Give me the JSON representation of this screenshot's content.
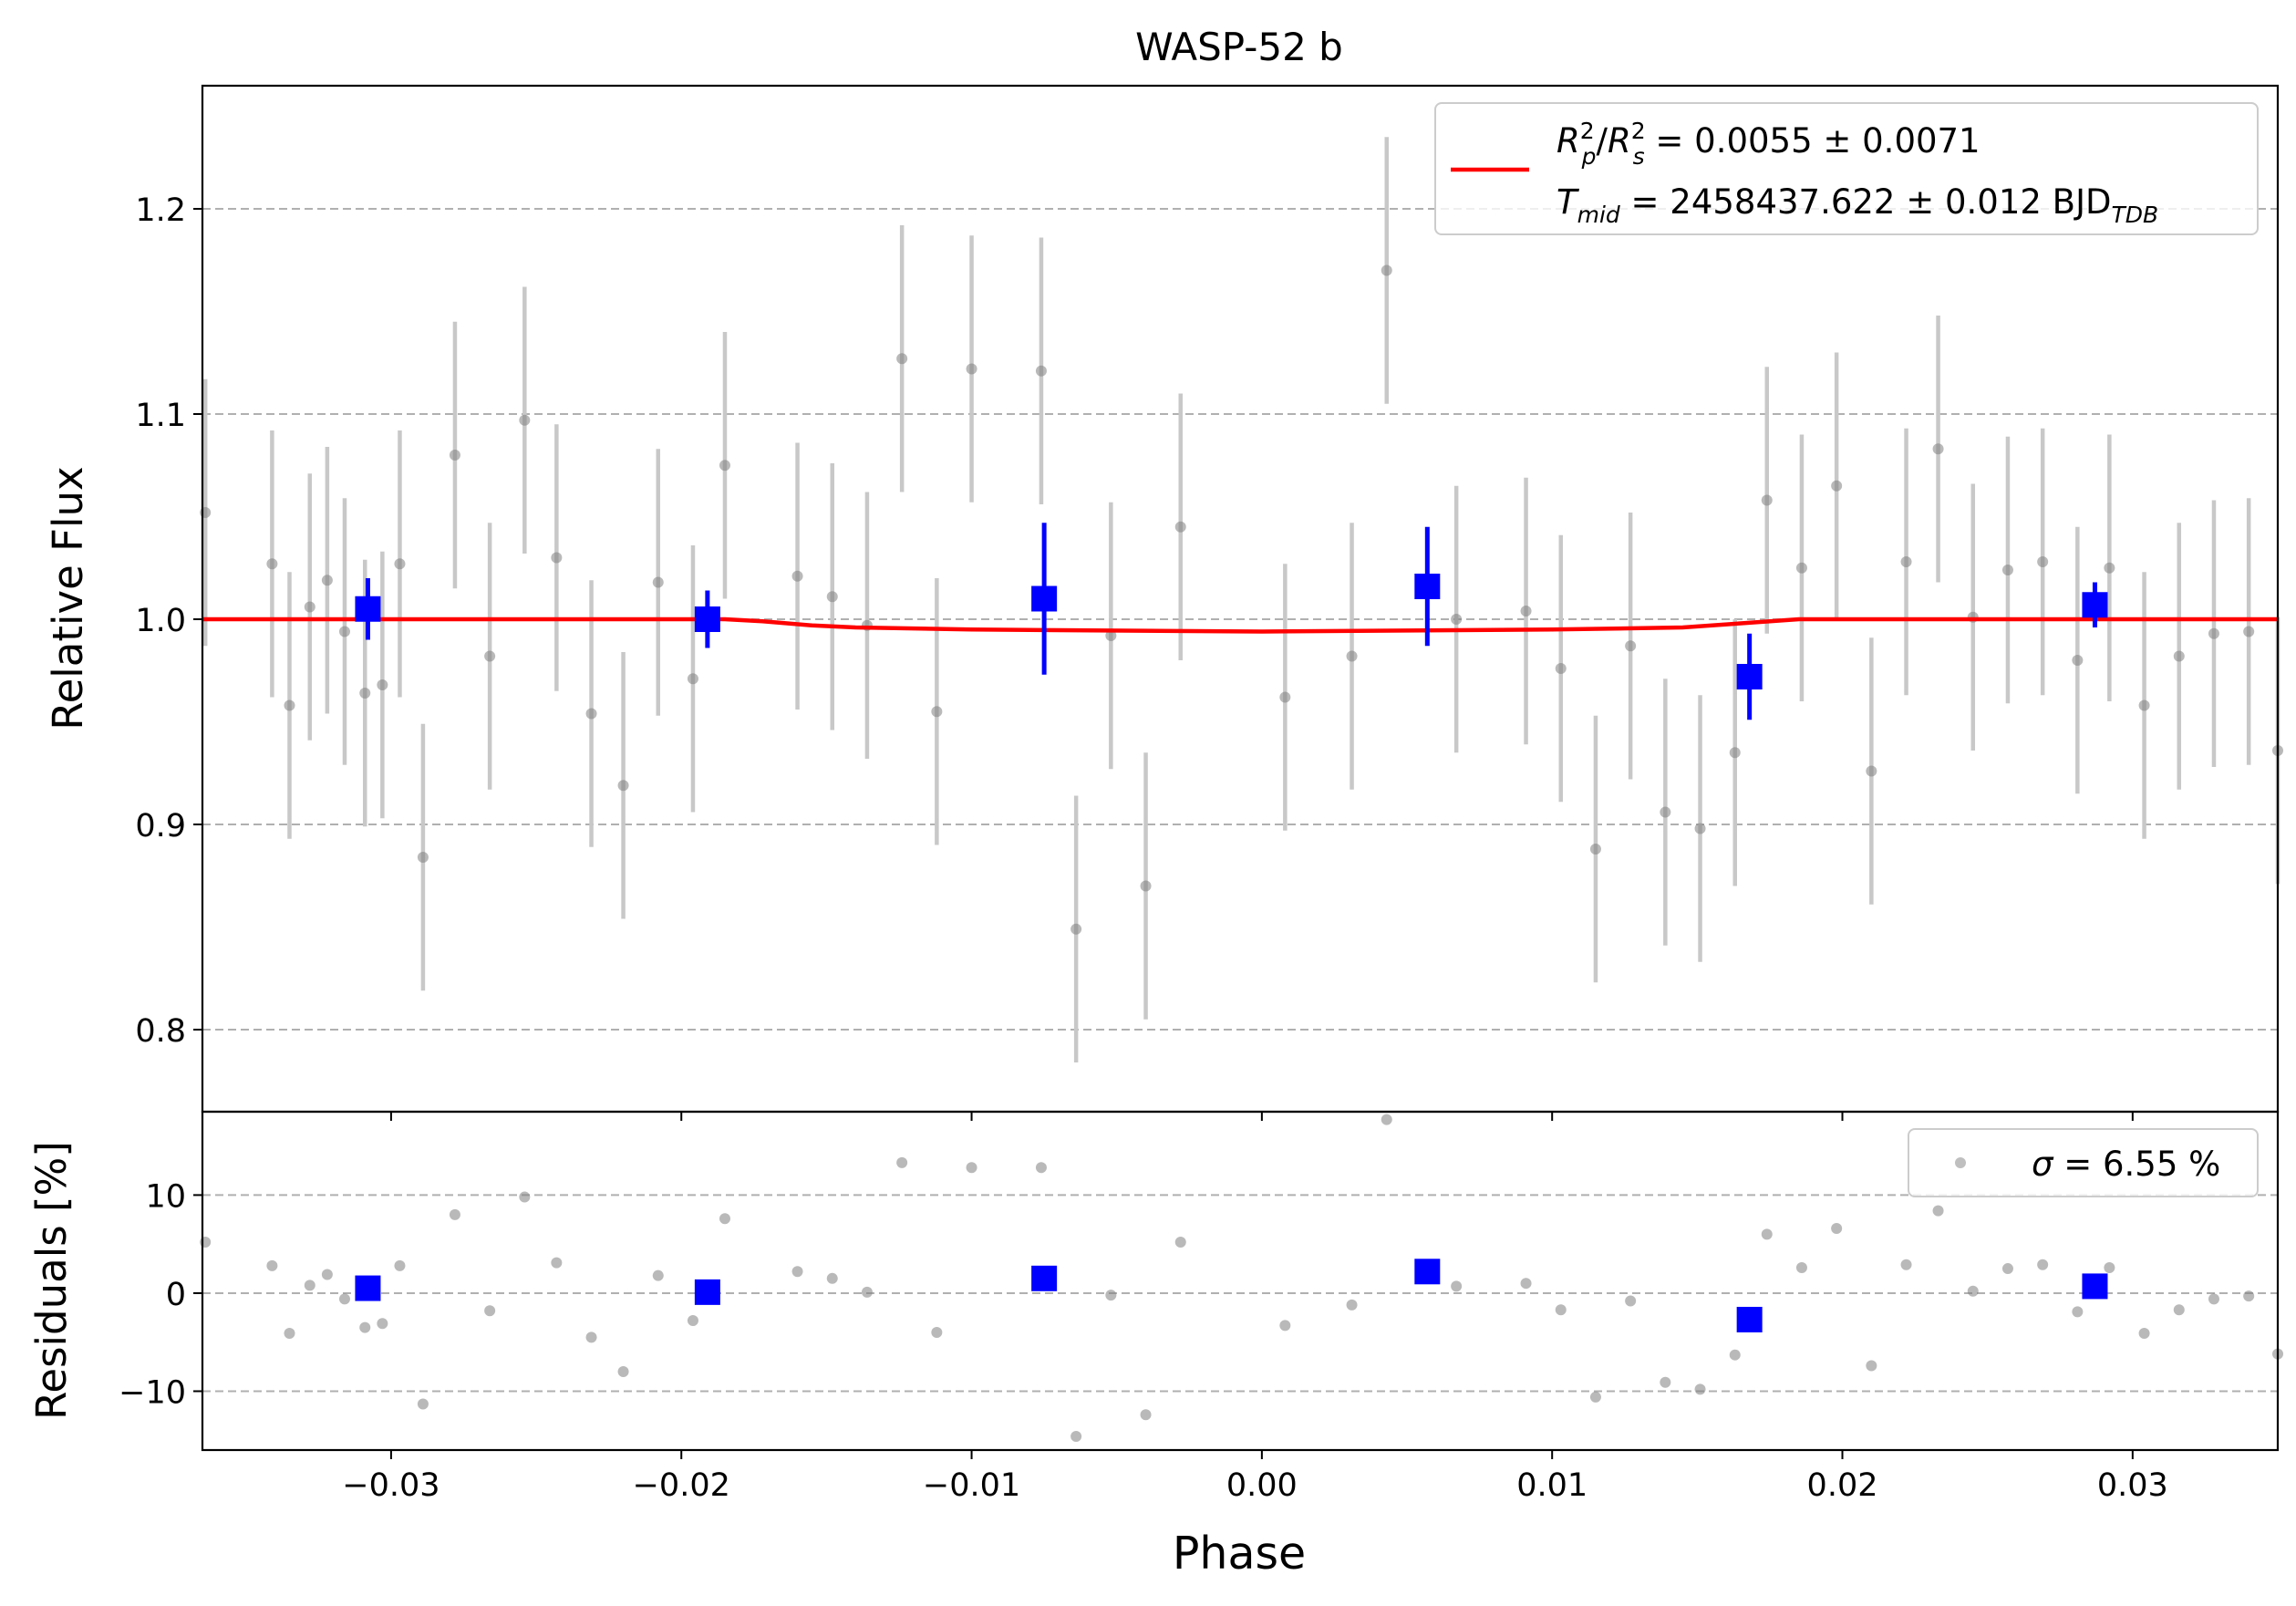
{
  "chart_data": [
    {
      "type": "scatter",
      "panel": "lightcurve",
      "title": "WASP-52 b",
      "xlabel": "",
      "ylabel": "Relative Flux",
      "xlim": [
        -0.0365,
        0.035
      ],
      "ylim": [
        0.76,
        1.26
      ],
      "yticks": [
        0.8,
        0.9,
        1.0,
        1.1,
        1.2
      ],
      "ytick_labels": [
        "0.8",
        "0.9",
        "1.0",
        "1.1",
        "1.2"
      ],
      "grid": "y-dashed",
      "legend_position": "upper right",
      "legend": {
        "line1": {
          "R": "R",
          "sub_p": "p",
          "sup_a": "2",
          "slash": "/",
          "sub_s": "s",
          "sup_b": "2",
          "value": " = 0.0055 ± 0.0071"
        },
        "line2": {
          "T": "T",
          "sub": "mid",
          "value": " = 2458437.622 ± 0.012 BJD",
          "unit_sub": "TDB"
        }
      },
      "colors": {
        "data": "#808080",
        "errorbar": "#c8c8c8",
        "binned": "#0000ff",
        "model": "#ff0000",
        "grid": "#b0b0b0"
      },
      "series": [
        {
          "role": "data",
          "x": [
            -0.0364,
            -0.0341,
            -0.0335,
            -0.0328,
            -0.0322,
            -0.0316,
            -0.0309,
            -0.0303,
            -0.0297,
            -0.0289,
            -0.0278,
            -0.0266,
            -0.0254,
            -0.0243,
            -0.0231,
            -0.022,
            -0.0208,
            -0.0196,
            -0.0185,
            -0.016,
            -0.0148,
            -0.0136,
            -0.0124,
            -0.0112,
            -0.01,
            -0.0076,
            -0.0064,
            -0.0052,
            -0.004,
            -0.0028,
            0.0008,
            0.0031,
            0.0043,
            0.0067,
            0.0091,
            0.0103,
            0.0115,
            0.0127,
            0.0139,
            0.0151,
            0.0163,
            0.0174,
            0.0186,
            0.0198,
            0.021,
            0.0222,
            0.0233,
            0.0245,
            0.0257,
            0.0269,
            0.0281,
            0.0292,
            0.0304,
            0.0316,
            0.0328,
            0.034,
            0.035
          ],
          "y": [
            1.052,
            1.027,
            0.958,
            1.006,
            1.019,
            0.994,
            0.964,
            0.968,
            1.027,
            0.884,
            1.08,
            0.982,
            1.097,
            1.03,
            0.954,
            0.919,
            1.018,
            0.971,
            1.075,
            1.021,
            1.011,
            0.997,
            1.127,
            0.955,
            1.122,
            1.121,
            0.849,
            0.992,
            0.87,
            1.045,
            0.962,
            0.982,
            1.17,
            1.0,
            1.004,
            0.976,
            0.888,
            0.987,
            0.906,
            0.898,
            0.935,
            1.058,
            1.025,
            1.065,
            0.926,
            1.028,
            1.083,
            1.001,
            1.024,
            1.028,
            0.98,
            1.025,
            0.958,
            0.982,
            0.993,
            0.994,
            0.936
          ],
          "yerr": [
            0.065,
            0.065,
            0.065,
            0.065,
            0.065,
            0.065,
            0.065,
            0.065,
            0.065,
            0.065,
            0.065,
            0.065,
            0.065,
            0.065,
            0.065,
            0.065,
            0.065,
            0.065,
            0.065,
            0.065,
            0.065,
            0.065,
            0.065,
            0.065,
            0.065,
            0.065,
            0.065,
            0.065,
            0.065,
            0.065,
            0.065,
            0.065,
            0.065,
            0.065,
            0.065,
            0.065,
            0.065,
            0.065,
            0.065,
            0.065,
            0.065,
            0.065,
            0.065,
            0.065,
            0.065,
            0.065,
            0.065,
            0.065,
            0.065,
            0.065,
            0.065,
            0.065,
            0.065,
            0.065,
            0.065,
            0.065,
            0.065
          ]
        },
        {
          "role": "binned",
          "x": [
            -0.0308,
            -0.0191,
            -0.0075,
            0.0057,
            0.0168,
            0.0287
          ],
          "y": [
            1.005,
            1.0,
            1.01,
            1.016,
            0.972,
            1.007
          ],
          "yerr": [
            0.015,
            0.014,
            0.037,
            0.029,
            0.021,
            0.011
          ]
        },
        {
          "role": "model",
          "x": [
            -0.0365,
            -0.0185,
            -0.0172,
            -0.0155,
            -0.014,
            -0.01,
            0.0,
            0.01,
            0.0145,
            0.0165,
            0.0185,
            0.035
          ],
          "y": [
            1.0,
            1.0,
            0.999,
            0.997,
            0.996,
            0.995,
            0.994,
            0.995,
            0.996,
            0.998,
            1.0,
            1.0
          ]
        }
      ]
    },
    {
      "type": "scatter",
      "panel": "residuals",
      "xlabel": "Phase",
      "ylabel": "Residuals [%]",
      "xlim": [
        -0.0365,
        0.035
      ],
      "ylim": [
        -16,
        18.5
      ],
      "xticks": [
        -0.03,
        -0.02,
        -0.01,
        0.0,
        0.01,
        0.02,
        0.03
      ],
      "xtick_labels": [
        "−0.03",
        "−0.02",
        "−0.01",
        "0.00",
        "0.01",
        "0.02",
        "0.03"
      ],
      "yticks": [
        -10,
        0,
        10
      ],
      "ytick_labels": [
        "−10",
        "0",
        "10"
      ],
      "grid": "y-dashed",
      "legend_position": "upper right",
      "legend": {
        "sigma": "σ",
        "value": " = 6.55 %"
      },
      "series": [
        {
          "role": "data",
          "x": [
            -0.0364,
            -0.0341,
            -0.0335,
            -0.0328,
            -0.0322,
            -0.0316,
            -0.0309,
            -0.0303,
            -0.0297,
            -0.0289,
            -0.0278,
            -0.0266,
            -0.0254,
            -0.0243,
            -0.0231,
            -0.022,
            -0.0208,
            -0.0196,
            -0.0185,
            -0.016,
            -0.0148,
            -0.0136,
            -0.0124,
            -0.0112,
            -0.01,
            -0.0076,
            -0.0064,
            -0.0052,
            -0.004,
            -0.0028,
            0.0008,
            0.0031,
            0.0043,
            0.0067,
            0.0091,
            0.0103,
            0.0115,
            0.0127,
            0.0139,
            0.0151,
            0.0163,
            0.0174,
            0.0186,
            0.0198,
            0.021,
            0.0222,
            0.0233,
            0.0245,
            0.0257,
            0.0269,
            0.0281,
            0.0292,
            0.0304,
            0.0316,
            0.0328,
            0.034,
            0.035
          ],
          "y": [
            5.2,
            2.8,
            -4.1,
            0.8,
            1.9,
            -0.6,
            -3.5,
            -3.1,
            2.8,
            -11.3,
            8.0,
            -1.8,
            9.8,
            3.1,
            -4.5,
            -8.0,
            1.8,
            -2.8,
            7.6,
            2.2,
            1.5,
            0.1,
            13.3,
            -4.0,
            12.8,
            12.8,
            -14.6,
            -0.2,
            -12.4,
            5.2,
            -3.3,
            -1.2,
            17.7,
            0.7,
            1.0,
            -1.7,
            -10.6,
            -0.8,
            -9.1,
            -9.8,
            -6.3,
            6.0,
            2.6,
            6.6,
            -7.4,
            2.9,
            8.4,
            0.2,
            2.5,
            2.9,
            -1.9,
            2.6,
            -4.1,
            -1.7,
            -0.6,
            -0.3,
            -6.2
          ]
        },
        {
          "role": "binned",
          "x": [
            -0.0308,
            -0.0191,
            -0.0075,
            0.0057,
            0.0168,
            0.0287
          ],
          "y": [
            0.5,
            0.1,
            1.5,
            2.2,
            -2.7,
            0.7
          ]
        }
      ]
    }
  ]
}
